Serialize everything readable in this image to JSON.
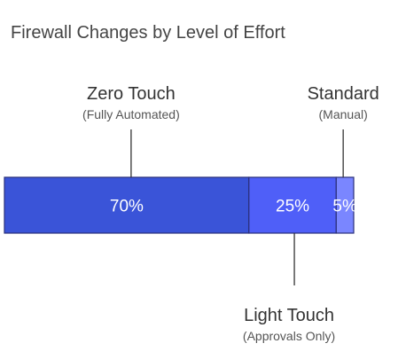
{
  "chart_data": {
    "type": "bar",
    "orientation": "horizontal-stacked",
    "title": "Firewall Changes by Level of Effort",
    "unit": "%",
    "segments": [
      {
        "name": "Zero Touch",
        "sub": "(Fully Automated)",
        "value": 70,
        "label": "70%",
        "color": "#3a54d8",
        "callout": "top"
      },
      {
        "name": "Light Touch",
        "sub": "(Approvals Only)",
        "value": 25,
        "label": "25%",
        "color": "#4f5ff8",
        "callout": "bottom"
      },
      {
        "name": "Standard",
        "sub": "(Manual)",
        "value": 5,
        "label": "5%",
        "color": "#7a86ff",
        "callout": "top"
      }
    ],
    "total": 100
  }
}
